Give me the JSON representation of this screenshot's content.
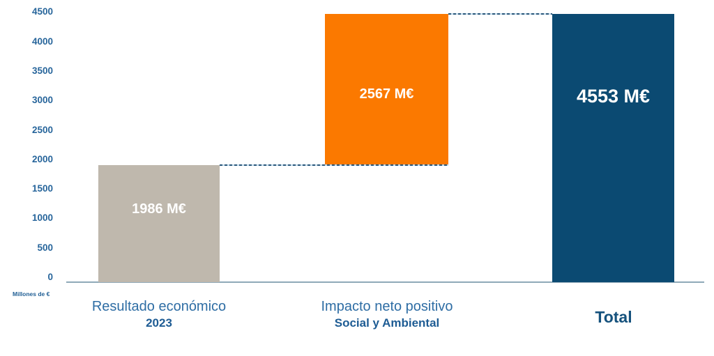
{
  "chart_data": {
    "type": "bar",
    "subtype": "waterfall",
    "title": "",
    "xlabel": "",
    "ylabel": "Millones de €",
    "ylim": [
      0,
      4553
    ],
    "grid": false,
    "legend": "none",
    "y_ticks": [
      0,
      500,
      1000,
      1500,
      2000,
      2500,
      3000,
      3500,
      4000,
      4500
    ],
    "bars": [
      {
        "name": "resultado-economico",
        "label": "1986 M€",
        "start": 0,
        "value": 1986,
        "end": 1986,
        "color": "#BFB8AD"
      },
      {
        "name": "impacto-neto-positivo",
        "label": "2567 M€",
        "start": 1986,
        "value": 2567,
        "end": 4553,
        "color": "#FB7900"
      },
      {
        "name": "total",
        "label": "4553 M€",
        "start": 0,
        "value": 4553,
        "end": 4553,
        "color": "#0B4A72"
      }
    ],
    "categories": [
      {
        "line1": "Resultado económico",
        "line2": "2023"
      },
      {
        "line1": "Impacto neto positivo",
        "line2": "Social y Ambiental"
      },
      {
        "line1": "",
        "line2": "Total"
      }
    ],
    "connectors": [
      {
        "level": 1986,
        "x1_bar": 0,
        "x1_side": "right",
        "x2_bar": 1,
        "x2_side": "right"
      },
      {
        "level": 4553,
        "x1_bar": 1,
        "x1_side": "right",
        "x2_bar": 2,
        "x2_side": "left"
      }
    ],
    "colors": {
      "bar_gray": "#BFB8AD",
      "bar_orange": "#FB7900",
      "bar_blue": "#0B4A72",
      "axis_line": "#8FA9B8",
      "tick_text": "#27659B",
      "category_text": "#2E6DA4",
      "category_bold_text": "#1E5C94",
      "value_label_text": "#FFFFFF",
      "connector_dash": "#28567A"
    }
  }
}
